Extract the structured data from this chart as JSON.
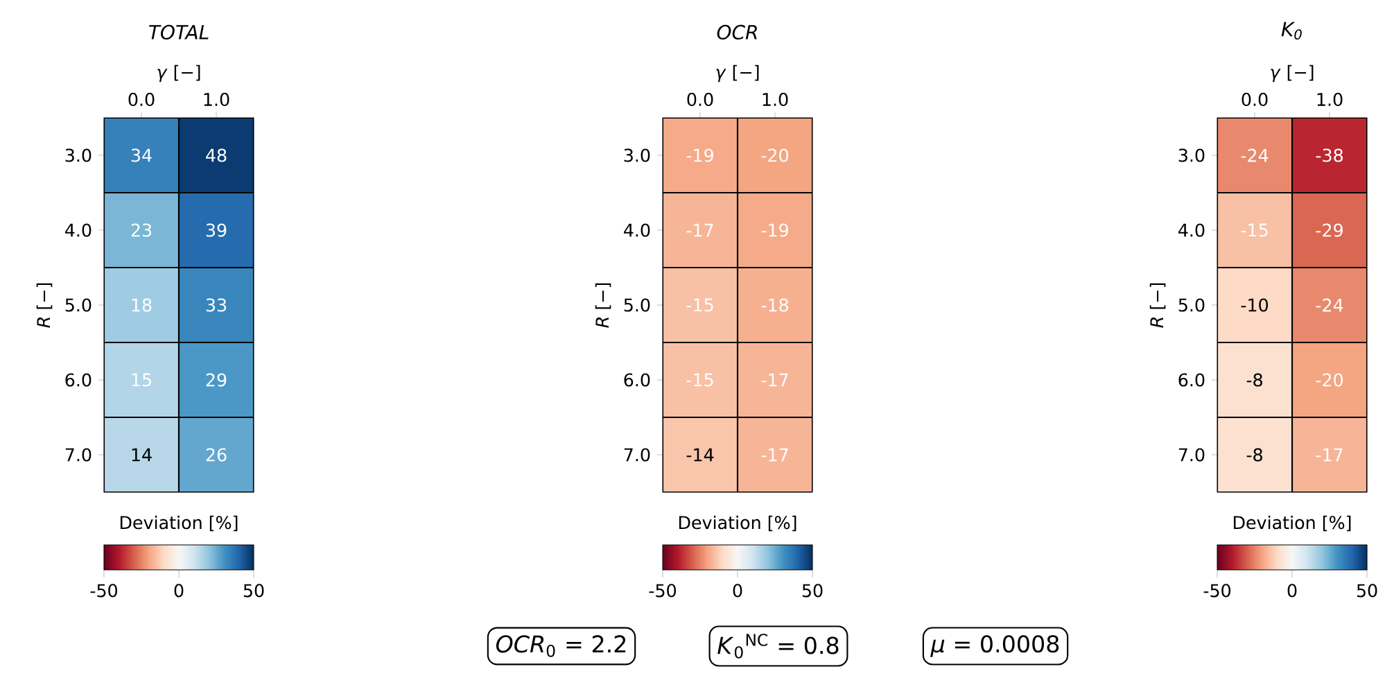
{
  "chart_data": [
    {
      "type": "heatmap",
      "title": "TOTAL",
      "xlabel": "*γ* [−]",
      "ylabel": "*R* [−]",
      "categories": [
        "0.0",
        "1.0"
      ],
      "y_categories": [
        "3.0",
        "4.0",
        "5.0",
        "6.0",
        "7.0"
      ],
      "cells": [
        [
          34,
          48
        ],
        [
          23,
          39
        ],
        [
          18,
          33
        ],
        [
          15,
          29
        ],
        [
          14,
          26
        ]
      ],
      "data_labels": true,
      "clabel": "Deviation [%]",
      "clim": [
        -50,
        50
      ],
      "cticks": [
        -50,
        0,
        50
      ]
    },
    {
      "type": "heatmap",
      "title": "OCR",
      "xlabel": "*γ* [−]",
      "ylabel": "*R* [−]",
      "categories": [
        "0.0",
        "1.0"
      ],
      "y_categories": [
        "3.0",
        "4.0",
        "5.0",
        "6.0",
        "7.0"
      ],
      "cells": [
        [
          -19,
          -20
        ],
        [
          -17,
          -19
        ],
        [
          -15,
          -18
        ],
        [
          -15,
          -17
        ],
        [
          -14,
          -17
        ]
      ],
      "data_labels": true,
      "clabel": "Deviation [%]",
      "clim": [
        -50,
        50
      ],
      "cticks": [
        -50,
        0,
        50
      ],
      "annotations": [
        "*OCR*$_{0}$ = 2.2",
        "*K*$_{0}$$^{NC}$ = 0.8",
        "*μ* = 0.0008"
      ]
    },
    {
      "type": "heatmap",
      "title": "K$_{0}$",
      "xlabel": "*γ* [−]",
      "ylabel": "*R* [−]",
      "categories": [
        "0.0",
        "1.0"
      ],
      "y_categories": [
        "3.0",
        "4.0",
        "5.0",
        "6.0",
        "7.0"
      ],
      "cells": [
        [
          -24,
          -38
        ],
        [
          -15,
          -29
        ],
        [
          -10,
          -24
        ],
        [
          -8,
          -20
        ],
        [
          -8,
          -17
        ]
      ],
      "data_labels": true,
      "clabel": "Deviation [%]",
      "clim": [
        -50,
        50
      ],
      "cticks": [
        -50,
        0,
        50
      ]
    }
  ]
}
